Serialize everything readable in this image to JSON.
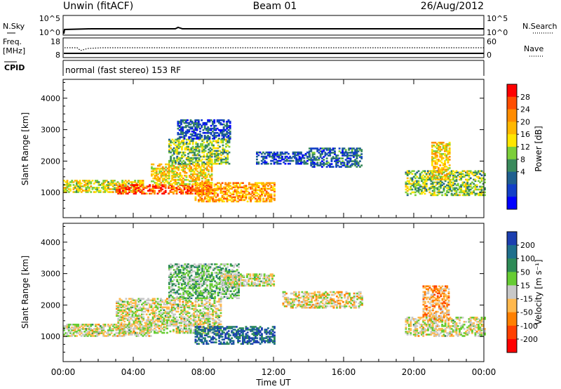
{
  "header": {
    "station": "Unwin (fitACF)",
    "beam": "Beam 01",
    "date": "26/Aug/2012"
  },
  "top_panels": {
    "nsky_label": "N.Sky",
    "nsearch_label": "N.Search",
    "noise_ticks": [
      "10^5",
      "10^0"
    ],
    "freq_label": "Freq.",
    "freq_unit": "[MHz]",
    "freq_ticks": [
      "18",
      "8"
    ],
    "nave_ticks": [
      "60",
      "0"
    ],
    "nave_label": "Nave",
    "cpid_label": "CPID",
    "cpid_text": "normal (fast stereo) 153 RF"
  },
  "chart_data": [
    {
      "type": "heatmap",
      "quantity": "Power",
      "ylabel": "Slant Range [km]",
      "ylim": [
        200,
        4600
      ],
      "yticks": [
        1000,
        2000,
        3000,
        4000
      ],
      "colorbar": {
        "label": "Power [dB]",
        "ticks": [
          "28",
          "24",
          "20",
          "16",
          "12",
          "8",
          "4"
        ],
        "colors": [
          "#ff0000",
          "#ff4d00",
          "#ff8c00",
          "#ffb800",
          "#ffe600",
          "#7ccf3a",
          "#3a8a5c",
          "#1f5f8f",
          "#123fc8",
          "#0000ff"
        ]
      },
      "regions": [
        {
          "t0": 0.0,
          "t1": 4.5,
          "r0": 1000,
          "r1": 1400,
          "level": 0.55
        },
        {
          "t0": 3.0,
          "t1": 8.5,
          "r0": 950,
          "r1": 1250,
          "level": 0.85
        },
        {
          "t0": 5.0,
          "t1": 8.5,
          "r0": 1250,
          "r1": 1900,
          "level": 0.6
        },
        {
          "t0": 6.0,
          "t1": 9.5,
          "r0": 1900,
          "r1": 2700,
          "level": 0.45
        },
        {
          "t0": 6.5,
          "t1": 9.5,
          "r0": 2700,
          "r1": 3300,
          "level": 0.2
        },
        {
          "t0": 7.5,
          "t1": 12.0,
          "r0": 700,
          "r1": 1300,
          "level": 0.7
        },
        {
          "t0": 11.0,
          "t1": 14.0,
          "r0": 1900,
          "r1": 2300,
          "level": 0.2
        },
        {
          "t0": 14.0,
          "t1": 17.0,
          "r0": 1800,
          "r1": 2400,
          "level": 0.25
        },
        {
          "t0": 19.5,
          "t1": 24.0,
          "r0": 900,
          "r1": 1700,
          "level": 0.45
        },
        {
          "t0": 21.0,
          "t1": 22.0,
          "r0": 1400,
          "r1": 2600,
          "level": 0.6
        }
      ]
    },
    {
      "type": "heatmap",
      "quantity": "Velocity",
      "ylabel": "Slant Range [km]",
      "xlabel": "Time UT",
      "xticks": [
        "00:00",
        "04:00",
        "08:00",
        "12:00",
        "16:00",
        "20:00",
        "00:00"
      ],
      "xlim": [
        0,
        24
      ],
      "ylim": [
        200,
        4600
      ],
      "yticks": [
        1000,
        2000,
        3000,
        4000
      ],
      "colorbar": {
        "label": "Velocity [m s⁻¹]",
        "ticks": [
          "200",
          "100",
          "50",
          "15",
          "-15",
          "-50",
          "-100",
          "-200"
        ],
        "colors": [
          "#1c3fb0",
          "#1f6f8c",
          "#2e8b57",
          "#66cc33",
          "#c8c8c8",
          "#ffb84d",
          "#ff8000",
          "#ff4000",
          "#ff0000"
        ]
      },
      "regions": [
        {
          "t0": 0.0,
          "t1": 5.0,
          "r0": 1000,
          "r1": 1400,
          "level": 0.5
        },
        {
          "t0": 3.0,
          "t1": 9.0,
          "r0": 1100,
          "r1": 2200,
          "level": 0.5
        },
        {
          "t0": 6.0,
          "t1": 10.0,
          "r0": 2200,
          "r1": 3300,
          "level": 0.62
        },
        {
          "t0": 7.5,
          "t1": 12.0,
          "r0": 750,
          "r1": 1300,
          "level": 0.85
        },
        {
          "t0": 9.0,
          "t1": 12.0,
          "r0": 2600,
          "r1": 3000,
          "level": 0.5
        },
        {
          "t0": 12.5,
          "t1": 17.0,
          "r0": 1900,
          "r1": 2400,
          "level": 0.45
        },
        {
          "t0": 19.5,
          "t1": 24.0,
          "r0": 1000,
          "r1": 1600,
          "level": 0.5
        },
        {
          "t0": 20.5,
          "t1": 22.0,
          "r0": 1500,
          "r1": 2600,
          "level": 0.35
        }
      ]
    }
  ]
}
